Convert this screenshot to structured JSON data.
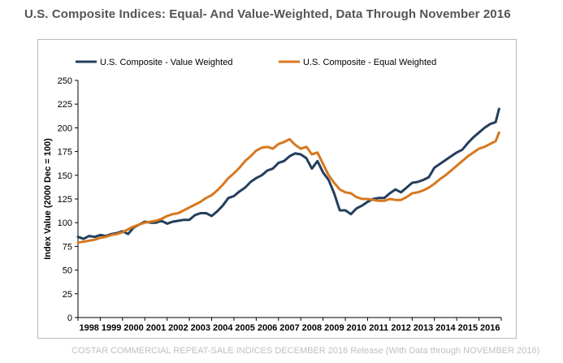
{
  "title": "U.S. Composite Indices: Equal- And Value-Weighted, Data Through November 2016",
  "footer": {
    "source": "COSTAR COMMERCIAL REPEAT-SALE INDICES",
    "release": "DECEMBER 2016 Release (With Data through NOVEMBER 2016)"
  },
  "colors": {
    "value_weighted": "#243f5c",
    "equal_weighted": "#d7781f",
    "axis": "#000000",
    "frame": "#b9b9b9",
    "title_text": "#555555",
    "footer_text": "#c0c0c0"
  },
  "chart_data": {
    "type": "line",
    "title": "U.S. Composite Indices: Equal- And Value-Weighted, Data Through November 2016",
    "xlabel": "",
    "ylabel": "Index Value (2000 Dec = 100)",
    "xlim": [
      1998,
      2017
    ],
    "ylim": [
      0,
      250
    ],
    "yticks": [
      0,
      25,
      50,
      75,
      100,
      125,
      150,
      175,
      200,
      225,
      250
    ],
    "xticks": [
      "1998",
      "1999",
      "2000",
      "2001",
      "2002",
      "2003",
      "2004",
      "2005",
      "2006",
      "2007",
      "2008",
      "2009",
      "2010",
      "2011",
      "2012",
      "2013",
      "2014",
      "2015",
      "2016"
    ],
    "grid": false,
    "legend": "top",
    "series": [
      {
        "name": "U.S. Composite - Value Weighted",
        "color": "#243f5c",
        "x": [
          1998.0,
          1998.25,
          1998.5,
          1998.75,
          1999.0,
          1999.25,
          1999.5,
          1999.75,
          2000.0,
          2000.25,
          2000.5,
          2000.75,
          2001.0,
          2001.25,
          2001.5,
          2001.75,
          2002.0,
          2002.25,
          2002.5,
          2002.75,
          2003.0,
          2003.25,
          2003.5,
          2003.75,
          2004.0,
          2004.25,
          2004.5,
          2004.75,
          2005.0,
          2005.25,
          2005.5,
          2005.75,
          2006.0,
          2006.25,
          2006.5,
          2006.75,
          2007.0,
          2007.25,
          2007.5,
          2007.75,
          2008.0,
          2008.25,
          2008.5,
          2008.75,
          2009.0,
          2009.25,
          2009.5,
          2009.75,
          2010.0,
          2010.25,
          2010.5,
          2010.75,
          2011.0,
          2011.25,
          2011.5,
          2011.75,
          2012.0,
          2012.25,
          2012.5,
          2012.75,
          2013.0,
          2013.25,
          2013.5,
          2013.75,
          2014.0,
          2014.25,
          2014.5,
          2014.75,
          2015.0,
          2015.25,
          2015.5,
          2015.75,
          2016.0,
          2016.25,
          2016.5,
          2016.75,
          2016.9
        ],
        "values": [
          85,
          83,
          86,
          85,
          87,
          86,
          88,
          89,
          91,
          88,
          95,
          98,
          101,
          100,
          100,
          102,
          99,
          101,
          102,
          103,
          103,
          108,
          110,
          110,
          107,
          112,
          118,
          126,
          128,
          133,
          137,
          143,
          147,
          150,
          155,
          157,
          163,
          165,
          170,
          173,
          172,
          168,
          157,
          165,
          153,
          145,
          131,
          113,
          113,
          109,
          115,
          118,
          122,
          125,
          126,
          126,
          131,
          135,
          132,
          137,
          142,
          143,
          145,
          148,
          158,
          162,
          166,
          170,
          174,
          177,
          184,
          190,
          195,
          200,
          204,
          206,
          220
        ]
      },
      {
        "name": "U.S. Composite - Equal Weighted",
        "color": "#d7781f",
        "x": [
          1998.0,
          1998.25,
          1998.5,
          1998.75,
          1999.0,
          1999.25,
          1999.5,
          1999.75,
          2000.0,
          2000.25,
          2000.5,
          2000.75,
          2001.0,
          2001.25,
          2001.5,
          2001.75,
          2002.0,
          2002.25,
          2002.5,
          2002.75,
          2003.0,
          2003.25,
          2003.5,
          2003.75,
          2004.0,
          2004.25,
          2004.5,
          2004.75,
          2005.0,
          2005.25,
          2005.5,
          2005.75,
          2006.0,
          2006.25,
          2006.5,
          2006.75,
          2007.0,
          2007.25,
          2007.5,
          2007.75,
          2008.0,
          2008.25,
          2008.5,
          2008.75,
          2009.0,
          2009.25,
          2009.5,
          2009.75,
          2010.0,
          2010.25,
          2010.5,
          2010.75,
          2011.0,
          2011.25,
          2011.5,
          2011.75,
          2012.0,
          2012.25,
          2012.5,
          2012.75,
          2013.0,
          2013.25,
          2013.5,
          2013.75,
          2014.0,
          2014.25,
          2014.5,
          2014.75,
          2015.0,
          2015.25,
          2015.5,
          2015.75,
          2016.0,
          2016.25,
          2016.5,
          2016.75,
          2016.9
        ],
        "values": [
          79,
          80,
          81,
          82,
          84,
          85,
          87,
          88,
          90,
          93,
          96,
          98,
          100,
          101,
          102,
          104,
          107,
          109,
          110,
          113,
          116,
          119,
          122,
          126,
          129,
          134,
          140,
          147,
          152,
          158,
          165,
          170,
          176,
          179,
          180,
          178,
          183,
          185,
          188,
          182,
          178,
          180,
          172,
          174,
          162,
          150,
          142,
          135,
          132,
          131,
          127,
          125,
          125,
          124,
          123,
          123,
          125,
          124,
          124,
          127,
          131,
          132,
          134,
          137,
          141,
          146,
          150,
          155,
          160,
          165,
          170,
          174,
          178,
          180,
          183,
          186,
          195
        ]
      }
    ]
  }
}
